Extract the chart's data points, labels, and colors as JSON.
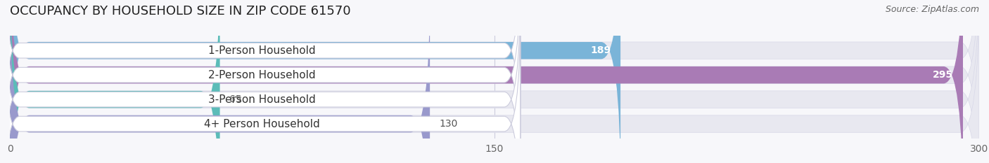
{
  "title": "OCCUPANCY BY HOUSEHOLD SIZE IN ZIP CODE 61570",
  "source": "Source: ZipAtlas.com",
  "categories": [
    "1-Person Household",
    "2-Person Household",
    "3-Person Household",
    "4+ Person Household"
  ],
  "values": [
    189,
    295,
    65,
    130
  ],
  "bar_colors": [
    "#7ab4d8",
    "#a97bb5",
    "#5bbcb8",
    "#9999cc"
  ],
  "bar_labels": [
    "189",
    "295",
    "65",
    "130"
  ],
  "label_inside": [
    true,
    true,
    false,
    false
  ],
  "xlim": [
    0,
    300
  ],
  "xticks": [
    0,
    150,
    300
  ],
  "background_color": "#f7f7fa",
  "bar_bg_color": "#e8e8f0",
  "label_bg_color": "#ffffff",
  "title_fontsize": 13,
  "source_fontsize": 9,
  "value_fontsize": 10,
  "tick_fontsize": 10,
  "category_fontsize": 11
}
